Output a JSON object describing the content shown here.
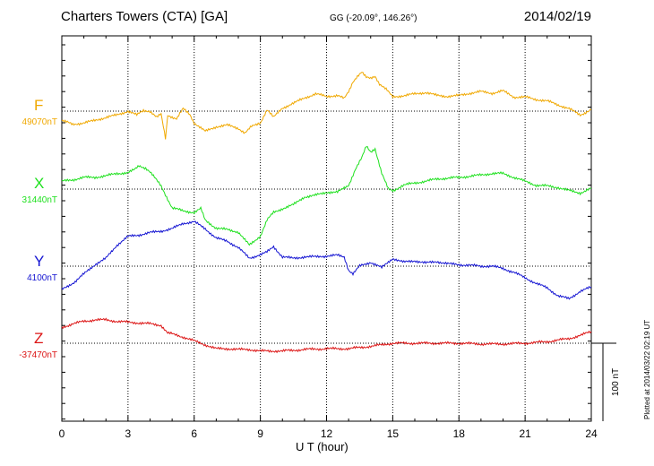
{
  "header": {
    "title": "Charters Towers (CTA)  [GA]",
    "coords": "GG (-20.09°, 146.26°)",
    "date": "2014/02/19"
  },
  "footer": {
    "plotted": "Plotted at 2014/03/22 02:19 UT"
  },
  "scale_bar": {
    "label": "100 nT",
    "value_nt": 100
  },
  "chart_data": {
    "type": "line",
    "xlabel": "U T (hour)",
    "xlim": [
      0,
      24
    ],
    "xticks": [
      0,
      3,
      6,
      9,
      12,
      15,
      18,
      21,
      24
    ],
    "grid": true,
    "series": [
      {
        "name": "F",
        "baseline_label": "49070nT",
        "color": "#f0a800",
        "values": [
          [
            0,
            -12
          ],
          [
            0.5,
            -17
          ],
          [
            1,
            -15
          ],
          [
            1.5,
            -12
          ],
          [
            2,
            -8
          ],
          [
            2.5,
            -5
          ],
          [
            3,
            0
          ],
          [
            3.4,
            -5
          ],
          [
            3.7,
            1
          ],
          [
            4,
            0
          ],
          [
            4.3,
            -8
          ],
          [
            4.5,
            -4
          ],
          [
            4.7,
            -35
          ],
          [
            4.8,
            -5
          ],
          [
            5.2,
            -10
          ],
          [
            5.5,
            3
          ],
          [
            5.8,
            -4
          ],
          [
            6,
            -15
          ],
          [
            6.5,
            -26
          ],
          [
            7,
            -20
          ],
          [
            7.5,
            -18
          ],
          [
            8,
            -22
          ],
          [
            8.3,
            -28
          ],
          [
            8.6,
            -20
          ],
          [
            9,
            -15
          ],
          [
            9.3,
            2
          ],
          [
            9.6,
            -8
          ],
          [
            10,
            4
          ],
          [
            10.5,
            10
          ],
          [
            11,
            17
          ],
          [
            11.5,
            22
          ],
          [
            12,
            19
          ],
          [
            12.5,
            20
          ],
          [
            12.8,
            16
          ],
          [
            13,
            25
          ],
          [
            13.2,
            38
          ],
          [
            13.4,
            45
          ],
          [
            13.6,
            50
          ],
          [
            13.8,
            43
          ],
          [
            14,
            42
          ],
          [
            14.2,
            45
          ],
          [
            14.4,
            35
          ],
          [
            14.7,
            28
          ],
          [
            15,
            18
          ],
          [
            15.5,
            20
          ],
          [
            16,
            22
          ],
          [
            16.5,
            24
          ],
          [
            17,
            20
          ],
          [
            17.5,
            19
          ],
          [
            18,
            20
          ],
          [
            18.5,
            23
          ],
          [
            19,
            25
          ],
          [
            19.5,
            23
          ],
          [
            20,
            26
          ],
          [
            20.5,
            18
          ],
          [
            21,
            18
          ],
          [
            21.5,
            15
          ],
          [
            22,
            13
          ],
          [
            22.5,
            8
          ],
          [
            23,
            3
          ],
          [
            23.5,
            -5
          ],
          [
            24,
            2
          ]
        ]
      },
      {
        "name": "X",
        "baseline_label": "31440nT",
        "color": "#1ee01e",
        "values": [
          [
            0,
            10
          ],
          [
            0.5,
            12
          ],
          [
            1,
            15
          ],
          [
            1.5,
            15
          ],
          [
            2,
            17
          ],
          [
            2.5,
            20
          ],
          [
            3,
            21
          ],
          [
            3.3,
            25
          ],
          [
            3.5,
            30
          ],
          [
            3.8,
            27
          ],
          [
            4,
            22
          ],
          [
            4.5,
            4
          ],
          [
            5,
            -24
          ],
          [
            5.5,
            -28
          ],
          [
            6,
            -30
          ],
          [
            6.3,
            -25
          ],
          [
            6.5,
            -40
          ],
          [
            6.8,
            -46
          ],
          [
            7,
            -50
          ],
          [
            7.5,
            -52
          ],
          [
            8,
            -55
          ],
          [
            8.5,
            -72
          ],
          [
            8.8,
            -65
          ],
          [
            9,
            -60
          ],
          [
            9.3,
            -40
          ],
          [
            9.6,
            -30
          ],
          [
            10,
            -25
          ],
          [
            10.5,
            -20
          ],
          [
            11,
            -10
          ],
          [
            11.5,
            -8
          ],
          [
            12,
            -4
          ],
          [
            12.5,
            -4
          ],
          [
            13,
            5
          ],
          [
            13.3,
            25
          ],
          [
            13.6,
            40
          ],
          [
            13.8,
            55
          ],
          [
            14,
            48
          ],
          [
            14.2,
            52
          ],
          [
            14.5,
            20
          ],
          [
            14.8,
            0
          ],
          [
            15,
            -2
          ],
          [
            15.5,
            5
          ],
          [
            16,
            8
          ],
          [
            16.5,
            10
          ],
          [
            17,
            13
          ],
          [
            18,
            15
          ],
          [
            19,
            18
          ],
          [
            19.5,
            20
          ],
          [
            20,
            20
          ],
          [
            20.5,
            15
          ],
          [
            21,
            10
          ],
          [
            21.5,
            5
          ],
          [
            22,
            4
          ],
          [
            22.5,
            2
          ],
          [
            23,
            -2
          ],
          [
            23.5,
            -5
          ],
          [
            24,
            1
          ]
        ]
      },
      {
        "name": "Y",
        "baseline_label": "4100nT",
        "color": "#1414d2",
        "values": [
          [
            0,
            -30
          ],
          [
            0.3,
            -25
          ],
          [
            0.6,
            -20
          ],
          [
            1,
            -10
          ],
          [
            1.5,
            2
          ],
          [
            2,
            10
          ],
          [
            2.5,
            27
          ],
          [
            3,
            38
          ],
          [
            3.5,
            40
          ],
          [
            4,
            43
          ],
          [
            4.5,
            45
          ],
          [
            5,
            48
          ],
          [
            5.5,
            55
          ],
          [
            6,
            57
          ],
          [
            6.5,
            48
          ],
          [
            7,
            36
          ],
          [
            7.5,
            32
          ],
          [
            8,
            24
          ],
          [
            8.5,
            10
          ],
          [
            9,
            15
          ],
          [
            9.3,
            18
          ],
          [
            9.6,
            25
          ],
          [
            10,
            12
          ],
          [
            10.5,
            10
          ],
          [
            11,
            12
          ],
          [
            11.5,
            12
          ],
          [
            12,
            13
          ],
          [
            12.5,
            14
          ],
          [
            12.8,
            12
          ],
          [
            13,
            -5
          ],
          [
            13.2,
            -10
          ],
          [
            13.5,
            0
          ],
          [
            14,
            5
          ],
          [
            14.5,
            -2
          ],
          [
            15,
            10
          ],
          [
            15.5,
            5
          ],
          [
            16,
            7
          ],
          [
            16.5,
            4
          ],
          [
            17,
            6
          ],
          [
            17.5,
            3
          ],
          [
            18,
            2
          ],
          [
            18.5,
            1
          ],
          [
            19,
            0
          ],
          [
            19.5,
            0
          ],
          [
            20,
            -3
          ],
          [
            20.5,
            -8
          ],
          [
            21,
            -15
          ],
          [
            21.5,
            -22
          ],
          [
            22,
            -28
          ],
          [
            22.5,
            -38
          ],
          [
            23,
            -42
          ],
          [
            23.5,
            -32
          ],
          [
            24,
            -27
          ]
        ]
      },
      {
        "name": "Z",
        "baseline_label": "-37470nT",
        "color": "#dc1414",
        "values": [
          [
            0,
            20
          ],
          [
            0.5,
            25
          ],
          [
            1,
            28
          ],
          [
            1.5,
            30
          ],
          [
            2,
            30
          ],
          [
            2.5,
            28
          ],
          [
            3,
            27
          ],
          [
            3.5,
            26
          ],
          [
            4,
            25
          ],
          [
            4.5,
            23
          ],
          [
            4.8,
            13
          ],
          [
            5,
            12
          ],
          [
            5.5,
            8
          ],
          [
            6,
            3
          ],
          [
            6.5,
            -2
          ],
          [
            7,
            -7
          ],
          [
            7.5,
            -7
          ],
          [
            8,
            -8
          ],
          [
            8.5,
            -8
          ],
          [
            9,
            -10
          ],
          [
            9.5,
            -10
          ],
          [
            10,
            -10
          ],
          [
            11,
            -8
          ],
          [
            12,
            -7
          ],
          [
            13,
            -7
          ],
          [
            14,
            -4
          ],
          [
            14.5,
            -2
          ],
          [
            15,
            0
          ],
          [
            16,
            0
          ],
          [
            17,
            0
          ],
          [
            18,
            0
          ],
          [
            19,
            -1
          ],
          [
            20,
            -1
          ],
          [
            21,
            0
          ],
          [
            22,
            2
          ],
          [
            23,
            6
          ],
          [
            23.5,
            10
          ],
          [
            24,
            15
          ]
        ]
      }
    ]
  }
}
